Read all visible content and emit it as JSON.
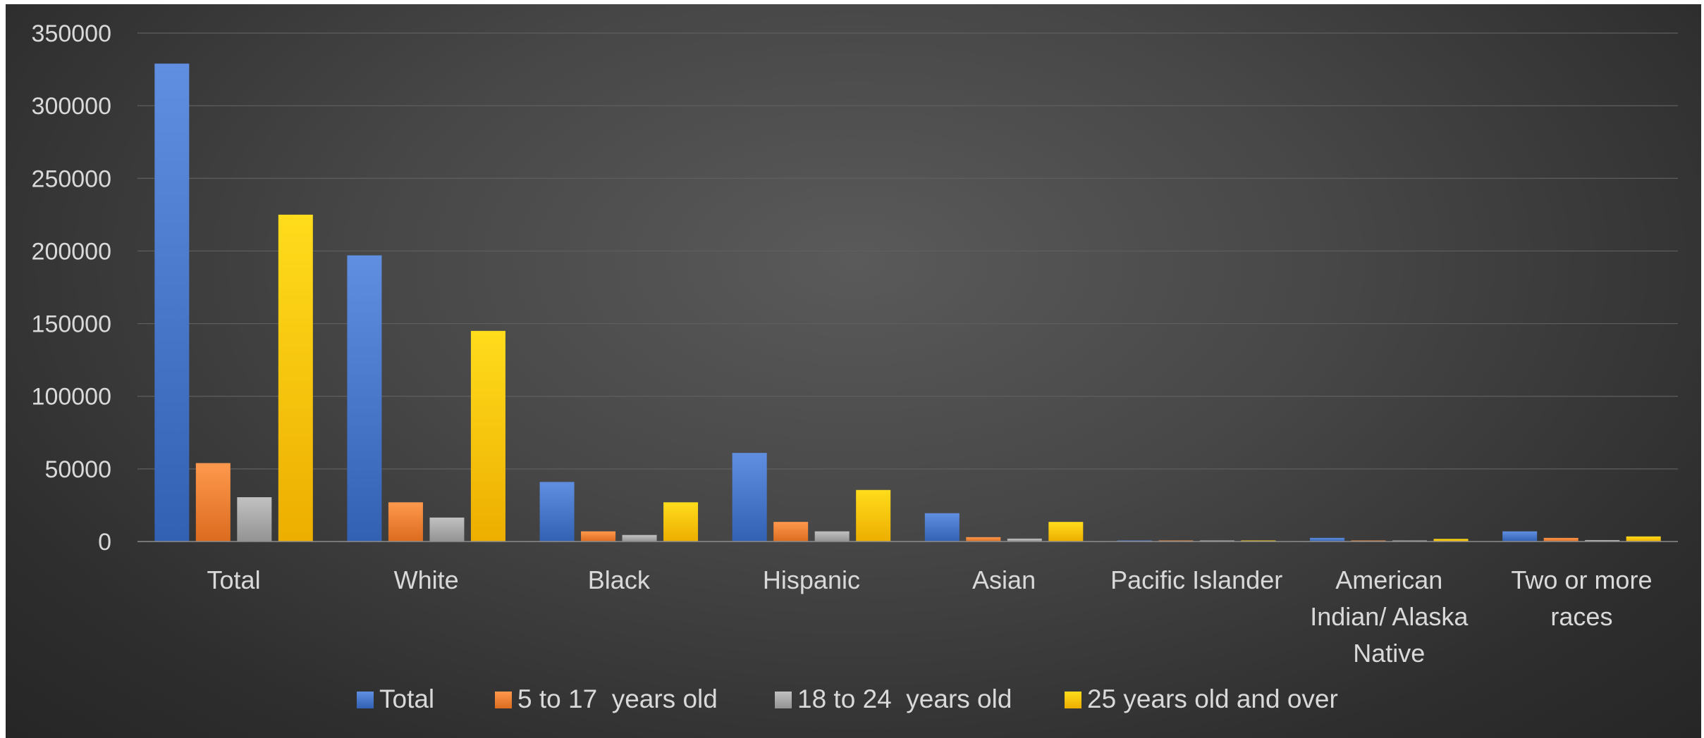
{
  "chart_data": {
    "type": "bar",
    "title": "",
    "xlabel": "",
    "ylabel": "",
    "categories": [
      "Total",
      "White",
      "Black",
      "Hispanic",
      "Asian",
      "Pacific Islander",
      "American Indian/ Alaska Native",
      "Two or more races"
    ],
    "category_lines": [
      [
        "Total"
      ],
      [
        "White"
      ],
      [
        "Black"
      ],
      [
        "Hispanic"
      ],
      [
        "Asian"
      ],
      [
        "Pacific Islander"
      ],
      [
        "American",
        "Indian/ Alaska",
        "Native"
      ],
      [
        "Two or more",
        "races"
      ]
    ],
    "series": [
      {
        "name": "Total",
        "color": "#4472c4",
        "values": [
          329000,
          197000,
          41000,
          61000,
          19500,
          600,
          2500,
          7000
        ]
      },
      {
        "name": "5 to 17  years old",
        "color": "#ed7d31",
        "values": [
          54000,
          27000,
          7000,
          13500,
          3000,
          150,
          500,
          2500
        ]
      },
      {
        "name": "18 to 24  years old",
        "color": "#a5a5a5",
        "values": [
          30500,
          16500,
          4500,
          7000,
          2000,
          100,
          300,
          1000
        ]
      },
      {
        "name": "25 years old and over",
        "color": "#ffc000",
        "values": [
          225000,
          145000,
          27000,
          35500,
          13500,
          400,
          1800,
          3500
        ]
      }
    ],
    "ylim": [
      0,
      350000
    ],
    "yticks": [
      "0",
      "50000",
      "100000",
      "150000",
      "200000",
      "250000",
      "300000",
      "350000"
    ],
    "grid": true,
    "legend_position": "bottom"
  }
}
